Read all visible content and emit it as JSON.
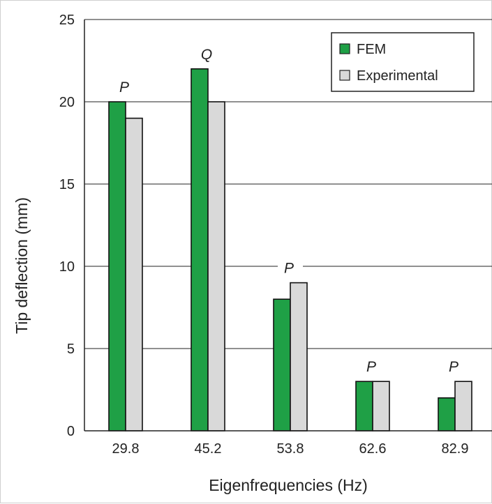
{
  "chart_data": {
    "type": "bar",
    "xlabel": "Eigenfrequencies (Hz)",
    "ylabel": "Tip deflection (mm)",
    "categories": [
      "29.8",
      "45.2",
      "53.8",
      "62.6",
      "82.9"
    ],
    "series": [
      {
        "name": "FEM",
        "values": [
          20,
          22,
          8,
          3,
          2
        ],
        "color": "#1fa046"
      },
      {
        "name": "Experimental",
        "values": [
          19,
          20,
          9,
          3,
          3
        ],
        "color": "#d9d9d9"
      }
    ],
    "annotations": [
      "P",
      "Q",
      "P",
      "P",
      "P"
    ],
    "ylim": [
      0,
      25
    ],
    "yticks": [
      0,
      5,
      10,
      15,
      20,
      25
    ],
    "grid": true,
    "legend_position": "top-right"
  }
}
